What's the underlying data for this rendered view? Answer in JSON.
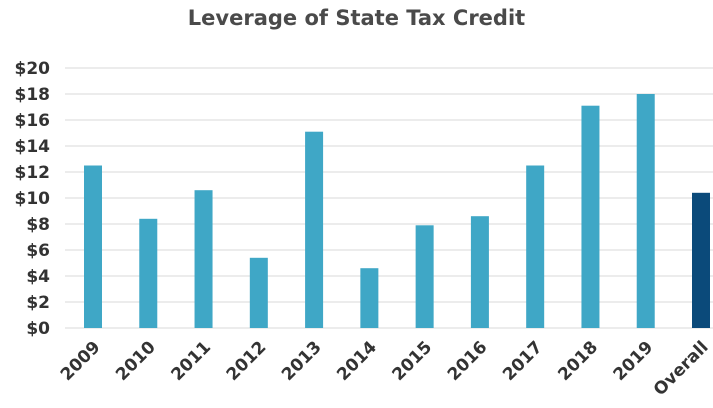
{
  "chart_data": {
    "type": "bar",
    "title": "Leverage of State Tax Credit",
    "xlabel": "",
    "ylabel": "",
    "categories": [
      "2009",
      "2010",
      "2011",
      "2012",
      "2013",
      "2014",
      "2015",
      "2016",
      "2017",
      "2018",
      "2019",
      "Overall"
    ],
    "values": [
      12.5,
      8.4,
      10.6,
      5.4,
      15.1,
      4.6,
      7.9,
      8.6,
      12.5,
      17.1,
      18.0,
      10.4
    ],
    "ylim": [
      0,
      20
    ],
    "yticks": [
      0,
      2,
      4,
      6,
      8,
      10,
      12,
      14,
      16,
      18,
      20
    ],
    "ytick_labels": [
      "$0",
      "$2",
      "$4",
      "$6",
      "$8",
      "$10",
      "$12",
      "$14",
      "$16",
      "$18",
      "$20"
    ],
    "grid": true,
    "legend": "none",
    "colors": {
      "bar": "#3fa7c6",
      "highlight_bar": "#0b4a7a",
      "grid": "#d9d9d9",
      "axis_text": "#333333",
      "title_text": "#4a4a4a"
    },
    "highlight_category": "Overall"
  }
}
